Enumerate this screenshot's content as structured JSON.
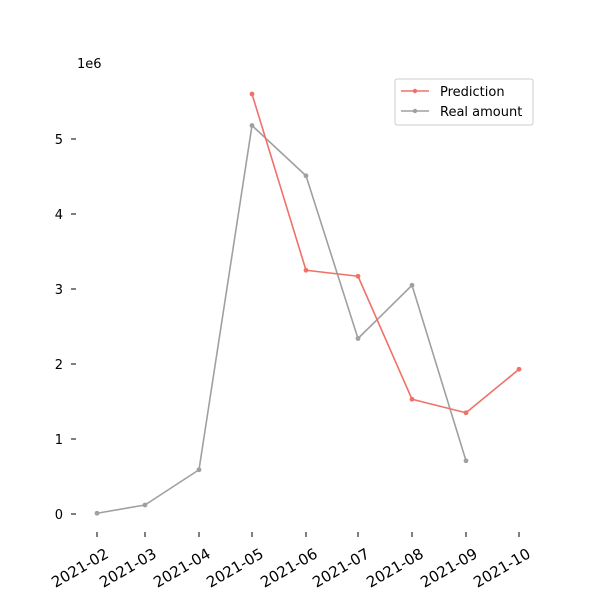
{
  "chart_data": {
    "type": "line",
    "x": [
      "2021-02",
      "2021-03",
      "2021-04",
      "2021-05",
      "2021-06",
      "2021-07",
      "2021-08",
      "2021-09",
      "2021-10"
    ],
    "y_offset_label": "1e6",
    "yticks": [
      0,
      1,
      2,
      3,
      4,
      5
    ],
    "ylim": [
      -0.3,
      6.5
    ],
    "series": [
      {
        "name": "Prediction",
        "color": "#f07167",
        "x": [
          "2021-05",
          "2021-06",
          "2021-07",
          "2021-08",
          "2021-09",
          "2021-10"
        ],
        "values": [
          5.6,
          3.25,
          3.17,
          1.53,
          1.35,
          1.93
        ]
      },
      {
        "name": "Real amount",
        "color": "#a0a0a0",
        "x": [
          "2021-02",
          "2021-03",
          "2021-04",
          "2021-05",
          "2021-06",
          "2021-07",
          "2021-08",
          "2021-09"
        ],
        "values": [
          0.01,
          0.12,
          0.59,
          5.18,
          4.51,
          2.34,
          3.05,
          0.71
        ]
      }
    ],
    "legend": {
      "placement": "top-right",
      "entries": [
        "Prediction",
        "Real amount"
      ]
    },
    "grid": false
  }
}
